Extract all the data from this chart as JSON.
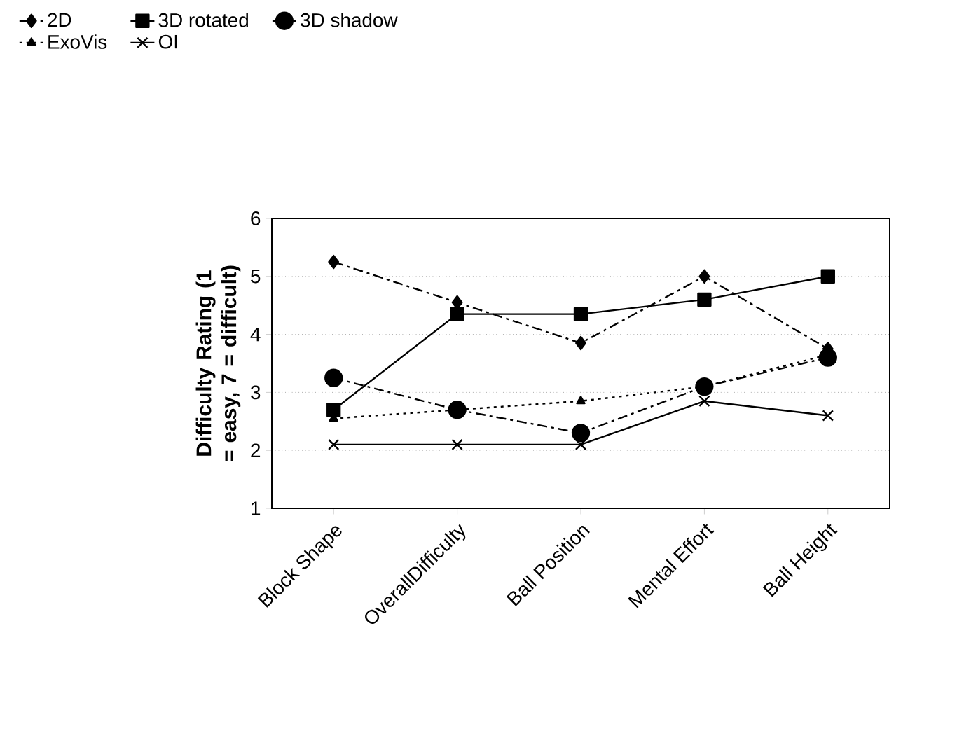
{
  "chart_data": {
    "type": "line",
    "ylabel": "Difficulty Rating (1 = easy, 7 = difficult)",
    "categories": [
      "Block Shape",
      "OverallDifficulty",
      "Ball Position",
      "Mental Effort",
      "Ball Height"
    ],
    "series": [
      {
        "name": "2D",
        "color": "#000000",
        "marker": "diamond",
        "line_style": "dashed",
        "values": [
          5.25,
          4.55,
          3.85,
          5.0,
          3.75
        ]
      },
      {
        "name": "3D rotated",
        "color": "#000000",
        "marker": "square",
        "line_style": "solid",
        "values": [
          2.7,
          4.35,
          4.35,
          4.6,
          5.0
        ]
      },
      {
        "name": "3D shadow",
        "color": "#000000",
        "marker": "circle",
        "line_style": "dashed",
        "values": [
          3.25,
          2.7,
          2.3,
          3.1,
          3.6
        ]
      },
      {
        "name": "ExoVis",
        "color": "#000000",
        "marker": "triangle",
        "line_style": "dotted",
        "values": [
          2.55,
          2.7,
          2.85,
          3.1,
          3.65
        ]
      },
      {
        "name": "OI",
        "color": "#000000",
        "marker": "cross",
        "line_style": "solid",
        "values": [
          2.1,
          2.1,
          2.1,
          2.85,
          2.6
        ]
      }
    ],
    "ylim": [
      1,
      6
    ],
    "yticks": [
      1,
      2,
      3,
      4,
      5,
      6
    ],
    "grid": "y",
    "legend": "top"
  }
}
